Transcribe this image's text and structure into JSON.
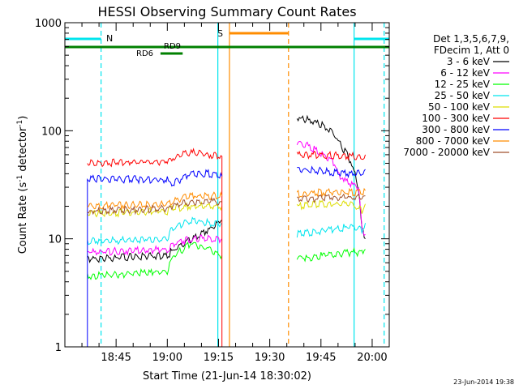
{
  "chart_data": {
    "type": "line",
    "title": "HESSI Observing Summary Count Rates",
    "xlabel": "Start Time (21-Jun-14 18:30:02)",
    "ylabel_main": "Count Rate (s",
    "ylabel_sup1": "-1",
    "ylabel_mid": " detector",
    "ylabel_sup2": "-1",
    "ylabel_end": ")",
    "y_scale": "log",
    "ylim": [
      1,
      1000
    ],
    "xlim_minutes": [
      0,
      95
    ],
    "y_ticks": [
      {
        "value": 1,
        "label": "1"
      },
      {
        "value": 10,
        "label": "10"
      },
      {
        "value": 100,
        "label": "100"
      },
      {
        "value": 1000,
        "label": "1000"
      }
    ],
    "x_ticks": [
      {
        "minute": 15,
        "label": "18:45"
      },
      {
        "minute": 30,
        "label": "19:00"
      },
      {
        "minute": 45,
        "label": "19:15"
      },
      {
        "minute": 60,
        "label": "19:30"
      },
      {
        "minute": 75,
        "label": "19:45"
      },
      {
        "minute": 90,
        "label": "20:00"
      }
    ],
    "legend_title_1": "Det 1,3,5,6,7,9,",
    "legend_title_2": "FDecim 1, Att 0",
    "legend_position": "right",
    "flags": {
      "night_label": "N",
      "saa_label": "S",
      "rd9_label": "RD9",
      "rd6_label": "RD6",
      "cyan_color": "#00e5ee",
      "orange_color": "#ff8c00",
      "green_color": "#008000"
    },
    "series": [
      {
        "name": "3 - 6 keV",
        "color": "#000000",
        "segments": [
          {
            "x": [
              6.6,
              30,
              32,
              37,
              42,
              46
            ],
            "y": [
              6.5,
              7,
              8,
              10,
              12,
              15
            ]
          },
          {
            "x": [
              68,
              72,
              76,
              78,
              80,
              82,
              84,
              86,
              87,
              88
            ],
            "y": [
              130,
              125,
              110,
              100,
              80,
              65,
              50,
              30,
              12,
              10
            ]
          }
        ]
      },
      {
        "name": "6 - 12 keV",
        "color": "#ff00ff",
        "segments": [
          {
            "x": [
              6.6,
              30,
              32,
              37,
              42,
              46
            ],
            "y": [
              7.5,
              8,
              9,
              10,
              10,
              10
            ]
          },
          {
            "x": [
              68,
              72,
              76,
              79,
              80,
              82,
              84,
              86,
              87,
              88
            ],
            "y": [
              80,
              70,
              60,
              50,
              40,
              35,
              32,
              30,
              12,
              11
            ]
          }
        ]
      },
      {
        "name": "12 - 25 keV",
        "color": "#00ff00",
        "segments": [
          {
            "x": [
              6.6,
              30,
              32,
              37,
              42,
              46
            ],
            "y": [
              4.5,
              5,
              7,
              9,
              8,
              7
            ]
          },
          {
            "x": [
              68,
              76,
              84,
              87,
              88
            ],
            "y": [
              6.5,
              7,
              7.5,
              7.5,
              8
            ]
          }
        ]
      },
      {
        "name": "25 - 50 keV",
        "color": "#00e5ee",
        "segments": [
          {
            "x": [
              6.6,
              30,
              31,
              37,
              42,
              46
            ],
            "y": [
              9.5,
              10,
              12,
              15,
              14,
              14
            ]
          },
          {
            "x": [
              68,
              76,
              84,
              87,
              88
            ],
            "y": [
              11,
              12,
              13,
              12,
              14
            ]
          }
        ]
      },
      {
        "name": "50 - 100 keV",
        "color": "#dddd00",
        "segments": [
          {
            "x": [
              6.6,
              30,
              31,
              37,
              42,
              46
            ],
            "y": [
              17,
              18,
              19,
              20,
              20,
              20
            ]
          },
          {
            "x": [
              68,
              76,
              84,
              87,
              88
            ],
            "y": [
              20,
              21,
              21,
              18,
              21
            ]
          }
        ]
      },
      {
        "name": "100 - 300 keV",
        "color": "#ff0000",
        "segments": [
          {
            "x": [
              6.6,
              30,
              31,
              37,
              42,
              46
            ],
            "y": [
              50,
              52,
              55,
              63,
              60,
              58
            ]
          },
          {
            "x": [
              68,
              76,
              84,
              87,
              88
            ],
            "y": [
              60,
              60,
              58,
              57,
              60
            ]
          }
        ]
      },
      {
        "name": "300 - 800 keV",
        "color": "#0000ff",
        "segments": [
          {
            "x": [
              6.6,
              30,
              31,
              37,
              42,
              46
            ],
            "y": [
              36,
              35,
              32,
              40,
              40,
              38
            ]
          },
          {
            "x": [
              68,
              76,
              84,
              87,
              88
            ],
            "y": [
              45,
              42,
              40,
              40,
              44
            ]
          }
        ]
      },
      {
        "name": "800 - 7000 keV",
        "color": "#ff8c00",
        "segments": [
          {
            "x": [
              6.6,
              30,
              31,
              37,
              42,
              46
            ],
            "y": [
              20,
              21,
              22,
              25,
              25,
              25
            ]
          },
          {
            "x": [
              68,
              76,
              84,
              87,
              88
            ],
            "y": [
              26,
              27,
              27,
              27,
              28
            ]
          }
        ]
      },
      {
        "name": "7000 - 20000 keV",
        "color": "#a0522d",
        "segments": [
          {
            "x": [
              6.6,
              30,
              31,
              37,
              42,
              46
            ],
            "y": [
              18,
              19,
              20,
              22,
              22,
              22
            ]
          },
          {
            "x": [
              68,
              76,
              84,
              87,
              88
            ],
            "y": [
              23,
              24,
              24,
              24,
              25
            ]
          }
        ]
      }
    ]
  },
  "footer": {
    "timestamp": "23-Jun-2014 19:38"
  }
}
